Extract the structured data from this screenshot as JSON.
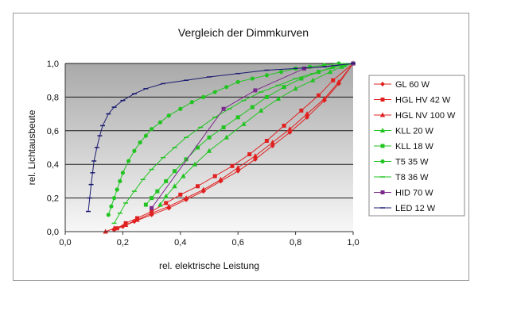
{
  "chart_data": {
    "type": "line",
    "title": "Vergleich der Dimmkurven",
    "xlabel": "rel. elektrische Leistung",
    "ylabel": "rel. Lichtausbeute",
    "xlim": [
      0,
      1
    ],
    "ylim": [
      0,
      1
    ],
    "x_ticks": [
      "0,0",
      "0,2",
      "0,4",
      "0,6",
      "0,8",
      "1,0"
    ],
    "y_ticks": [
      "0,0",
      "0,2",
      "0,4",
      "0,6",
      "0,8",
      "1,0"
    ],
    "grid": "horizontal",
    "legend_position": "right",
    "plot_background": "gray-gradient",
    "series": [
      {
        "name": "GL 60 W",
        "color": "#e02020",
        "marker": "diamond",
        "x": [
          0.17,
          0.2,
          0.24,
          0.3,
          0.36,
          0.42,
          0.48,
          0.54,
          0.6,
          0.66,
          0.72,
          0.78,
          0.84,
          0.9,
          0.95,
          1.0
        ],
        "y": [
          0.01,
          0.03,
          0.06,
          0.1,
          0.14,
          0.19,
          0.24,
          0.3,
          0.36,
          0.43,
          0.51,
          0.59,
          0.68,
          0.78,
          0.88,
          1.0
        ]
      },
      {
        "name": "HGL HV 42 W",
        "color": "#e02020",
        "marker": "square",
        "x": [
          0.18,
          0.21,
          0.25,
          0.3,
          0.35,
          0.4,
          0.46,
          0.52,
          0.58,
          0.64,
          0.7,
          0.76,
          0.82,
          0.88,
          0.93,
          1.0
        ],
        "y": [
          0.02,
          0.05,
          0.08,
          0.12,
          0.17,
          0.22,
          0.27,
          0.33,
          0.39,
          0.46,
          0.54,
          0.63,
          0.72,
          0.81,
          0.9,
          1.0
        ]
      },
      {
        "name": "HGL NV 100 W",
        "color": "#e02020",
        "marker": "triangle",
        "x": [
          0.14,
          0.17,
          0.21,
          0.25,
          0.3,
          0.36,
          0.42,
          0.48,
          0.54,
          0.6,
          0.66,
          0.72,
          0.78,
          0.84,
          0.9,
          0.95,
          1.0
        ],
        "y": [
          0.0,
          0.02,
          0.04,
          0.07,
          0.11,
          0.15,
          0.2,
          0.25,
          0.31,
          0.38,
          0.45,
          0.53,
          0.61,
          0.7,
          0.79,
          0.89,
          1.0
        ]
      },
      {
        "name": "KLL 20 W",
        "color": "#22c422",
        "marker": "triangle",
        "x": [
          0.33,
          0.35,
          0.38,
          0.41,
          0.45,
          0.5,
          0.56,
          0.62,
          0.68,
          0.74,
          0.8,
          0.86,
          0.92,
          0.96,
          1.0
        ],
        "y": [
          0.16,
          0.21,
          0.27,
          0.33,
          0.4,
          0.48,
          0.56,
          0.64,
          0.72,
          0.79,
          0.85,
          0.9,
          0.95,
          0.98,
          1.0
        ]
      },
      {
        "name": "KLL 18 W",
        "color": "#22c422",
        "marker": "square",
        "x": [
          0.28,
          0.3,
          0.32,
          0.35,
          0.38,
          0.42,
          0.46,
          0.5,
          0.55,
          0.6,
          0.65,
          0.7,
          0.76,
          0.82,
          0.88,
          0.93,
          0.97,
          1.0
        ],
        "y": [
          0.16,
          0.2,
          0.24,
          0.3,
          0.36,
          0.43,
          0.5,
          0.56,
          0.62,
          0.68,
          0.74,
          0.8,
          0.86,
          0.91,
          0.95,
          0.98,
          0.99,
          1.0
        ]
      },
      {
        "name": "T5 35 W",
        "color": "#22c422",
        "marker": "circle",
        "x": [
          0.15,
          0.16,
          0.17,
          0.18,
          0.19,
          0.2,
          0.22,
          0.24,
          0.26,
          0.28,
          0.3,
          0.33,
          0.36,
          0.4,
          0.44,
          0.48,
          0.52,
          0.56,
          0.6,
          0.65,
          0.7,
          0.75,
          0.8,
          0.85,
          0.9,
          0.95,
          1.0
        ],
        "y": [
          0.1,
          0.15,
          0.2,
          0.25,
          0.3,
          0.35,
          0.42,
          0.48,
          0.53,
          0.57,
          0.61,
          0.65,
          0.69,
          0.73,
          0.77,
          0.8,
          0.83,
          0.86,
          0.89,
          0.91,
          0.93,
          0.95,
          0.97,
          0.98,
          0.99,
          1.0,
          1.0
        ]
      },
      {
        "name": "T8 36 W",
        "color": "#22c422",
        "marker": "dash",
        "x": [
          0.17,
          0.19,
          0.21,
          0.24,
          0.27,
          0.3,
          0.34,
          0.38,
          0.42,
          0.47,
          0.52,
          0.57,
          0.62,
          0.68,
          0.74,
          0.8,
          0.86,
          0.92,
          0.96,
          1.0
        ],
        "y": [
          0.05,
          0.11,
          0.17,
          0.24,
          0.31,
          0.37,
          0.44,
          0.5,
          0.56,
          0.62,
          0.68,
          0.73,
          0.78,
          0.83,
          0.87,
          0.91,
          0.94,
          0.97,
          0.99,
          1.0
        ]
      },
      {
        "name": "HID 70 W",
        "color": "#7a2a8a",
        "marker": "square",
        "x": [
          0.3,
          0.55,
          0.66,
          0.83,
          1.0
        ],
        "y": [
          0.14,
          0.73,
          0.84,
          0.97,
          1.0
        ]
      },
      {
        "name": "LED 12 W",
        "color": "#1a1a70",
        "marker": "dash",
        "x": [
          0.08,
          0.085,
          0.09,
          0.095,
          0.1,
          0.11,
          0.12,
          0.13,
          0.15,
          0.17,
          0.2,
          0.24,
          0.28,
          0.34,
          0.42,
          0.5,
          0.6,
          0.7,
          0.8,
          0.9,
          1.0
        ],
        "y": [
          0.12,
          0.2,
          0.28,
          0.35,
          0.42,
          0.5,
          0.57,
          0.63,
          0.7,
          0.74,
          0.78,
          0.82,
          0.85,
          0.88,
          0.9,
          0.92,
          0.94,
          0.96,
          0.97,
          0.98,
          1.0
        ]
      }
    ]
  }
}
